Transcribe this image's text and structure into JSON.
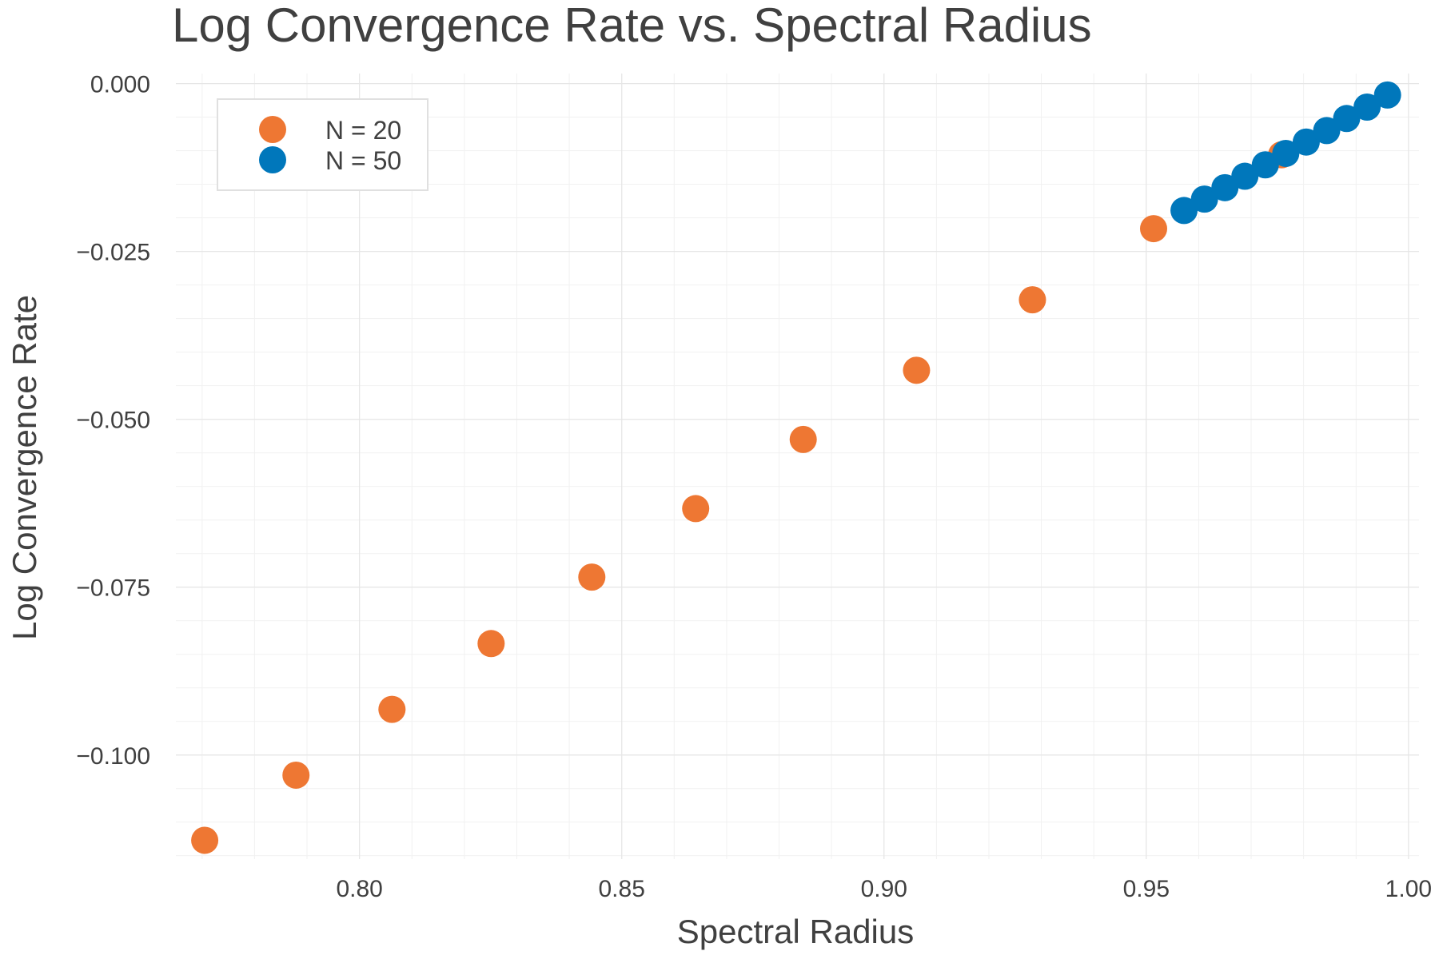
{
  "chart_data": {
    "type": "scatter",
    "title": "Log Convergence Rate vs. Spectral Radius",
    "xlabel": "Spectral Radius",
    "ylabel": "Log Convergence Rate",
    "xlim": [
      0.765,
      1.002
    ],
    "ylim": [
      -0.1155,
      0.0015
    ],
    "xticks": [
      0.8,
      0.85,
      0.9,
      0.95,
      1.0
    ],
    "xtick_labels": [
      "0.80",
      "0.85",
      "0.90",
      "0.95",
      "1.00"
    ],
    "yticks": [
      0.0,
      -0.025,
      -0.05,
      -0.075,
      -0.1
    ],
    "ytick_labels": [
      "0.000",
      "−0.025",
      "−0.050",
      "−0.075",
      "−0.100"
    ],
    "grid": true,
    "legend_position": "top-left",
    "series": [
      {
        "name": "N = 20",
        "color": "#EE7733",
        "x": [
          0.7705,
          0.7879,
          0.8062,
          0.8251,
          0.8443,
          0.8641,
          0.8846,
          0.9062,
          0.9283,
          0.9514,
          0.9758
        ],
        "y": [
          -0.1127,
          -0.103,
          -0.0932,
          -0.0834,
          -0.0735,
          -0.0633,
          -0.053,
          -0.0427,
          -0.0322,
          -0.0216,
          -0.0106
        ]
      },
      {
        "name": "N = 50",
        "color": "#0077BB",
        "x": [
          0.9572,
          0.9611,
          0.965,
          0.9688,
          0.9727,
          0.9766,
          0.9805,
          0.9844,
          0.9882,
          0.9921,
          0.996
        ],
        "y": [
          -0.0189,
          -0.0172,
          -0.0155,
          -0.0138,
          -0.0121,
          -0.0104,
          -0.0087,
          -0.007,
          -0.0052,
          -0.0035,
          -0.0017
        ]
      }
    ]
  }
}
